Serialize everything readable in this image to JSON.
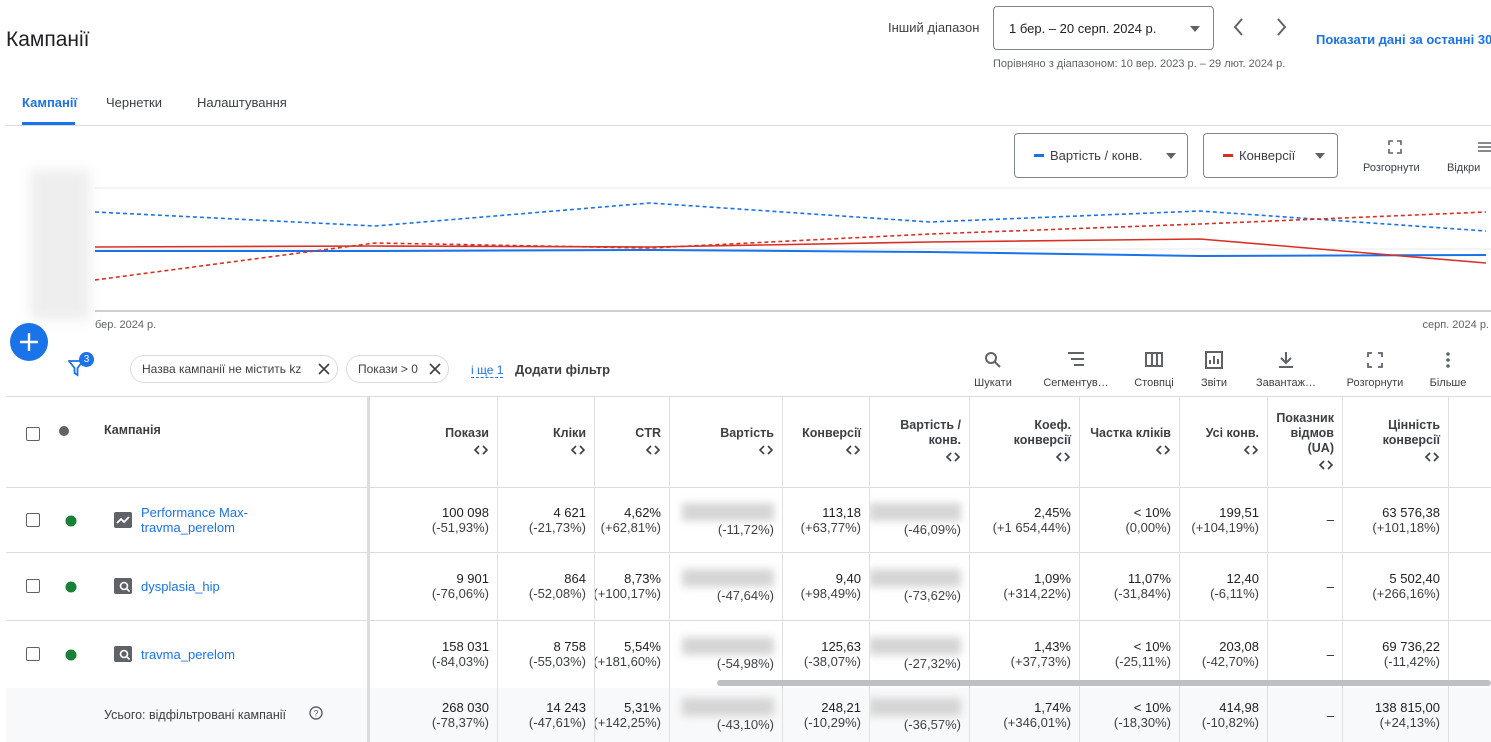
{
  "header": {
    "title": "Кампанії"
  },
  "date_range": {
    "label": "Інший діапазон",
    "value": "1 бер. – 20 серп. 2024 р.",
    "comparison": "Порівняно з діапазоном: 10 вер. 2023 р. – 29 лют. 2024 р.",
    "show_last": "Показати дані за останні 30"
  },
  "tabs": [
    "Кампанії",
    "Чернетки",
    "Налаштування"
  ],
  "chart": {
    "metrics": [
      "Вартість / конв.",
      "Конверсії"
    ],
    "actions": [
      "Розгорнути",
      "Відкри"
    ],
    "x_labels": [
      "бер. 2024 р.",
      "серп. 2024 р."
    ]
  },
  "filters": {
    "count": "3",
    "chips": [
      "Назва кампанії не містить kz",
      "Покази > 0"
    ],
    "more": "і ще 1",
    "add": "Додати фільтр"
  },
  "toolbar": [
    "Шукати",
    "Сегментув…",
    "Стовпці",
    "Звіти",
    "Завантаж…",
    "Розгорнути",
    "Більше"
  ],
  "table": {
    "name_header": "Кампанія",
    "columns": [
      "Покази",
      "Кліки",
      "CTR",
      "Вартість",
      "Конверсії",
      "Вартість / конв.",
      "Коеф. конверсії",
      "Частка кліків",
      "Усі конв.",
      "Показник відмов (UA)",
      "Цінність конверсії"
    ],
    "rows": [
      {
        "name": "Performance Max-travma_perelom",
        "cells": [
          {
            "value": "100 098",
            "change": "(-51,93%)"
          },
          {
            "value": "4 621",
            "change": "(-21,73%)"
          },
          {
            "value": "4,62%",
            "change": "(+62,81%)"
          },
          {
            "change": "(-11,72%)"
          },
          {
            "value": "113,18",
            "change": "(+63,77%)"
          },
          {
            "change": "(-46,09%)"
          },
          {
            "value": "2,45%",
            "change": "(+1 654,44%)"
          },
          {
            "value": "< 10%",
            "change": "(0,00%)"
          },
          {
            "value": "199,51",
            "change": "(+104,19%)"
          },
          {
            "value": "–"
          },
          {
            "value": "63 576,38",
            "change": "(+101,18%)"
          }
        ]
      },
      {
        "name": "dysplasia_hip",
        "cells": [
          {
            "value": "9 901",
            "change": "(-76,06%)"
          },
          {
            "value": "864",
            "change": "(-52,08%)"
          },
          {
            "value": "8,73%",
            "change": "(+100,17%)"
          },
          {
            "change": "(-47,64%)"
          },
          {
            "value": "9,40",
            "change": "(+98,49%)"
          },
          {
            "change": "(-73,62%)"
          },
          {
            "value": "1,09%",
            "change": "(+314,22%)"
          },
          {
            "value": "11,07%",
            "change": "(-31,84%)"
          },
          {
            "value": "12,40",
            "change": "(-6,11%)"
          },
          {
            "value": "–"
          },
          {
            "value": "5 502,40",
            "change": "(+266,16%)"
          }
        ]
      },
      {
        "name": "travma_perelom",
        "cells": [
          {
            "value": "158 031",
            "change": "(-84,03%)"
          },
          {
            "value": "8 758",
            "change": "(-55,03%)"
          },
          {
            "value": "5,54%",
            "change": "(+181,60%)"
          },
          {
            "change": "(-54,98%)"
          },
          {
            "value": "125,63",
            "change": "(-38,07%)"
          },
          {
            "change": "(-27,32%)"
          },
          {
            "value": "1,43%",
            "change": "(+37,73%)"
          },
          {
            "value": "< 10%",
            "change": "(-25,11%)"
          },
          {
            "value": "203,08",
            "change": "(-42,70%)"
          },
          {
            "value": "–"
          },
          {
            "value": "69 736,22",
            "change": "(-11,42%)"
          }
        ]
      }
    ],
    "total": {
      "label": "Усього: відфільтровані кампанії",
      "cells": [
        {
          "value": "268 030",
          "change": "(-78,37%)"
        },
        {
          "value": "14 243",
          "change": "(-47,61%)"
        },
        {
          "value": "5,31%",
          "change": "(+142,25%)"
        },
        {
          "change": "(-43,10%)"
        },
        {
          "value": "248,21",
          "change": "(-10,29%)"
        },
        {
          "change": "(-36,57%)"
        },
        {
          "value": "1,74%",
          "change": "(+346,01%)"
        },
        {
          "value": "< 10%",
          "change": "(-18,30%)"
        },
        {
          "value": "414,98",
          "change": "(-10,82%)"
        },
        {
          "value": "–"
        },
        {
          "value": "138 815,00",
          "change": "(+24,13%)"
        }
      ]
    }
  }
}
